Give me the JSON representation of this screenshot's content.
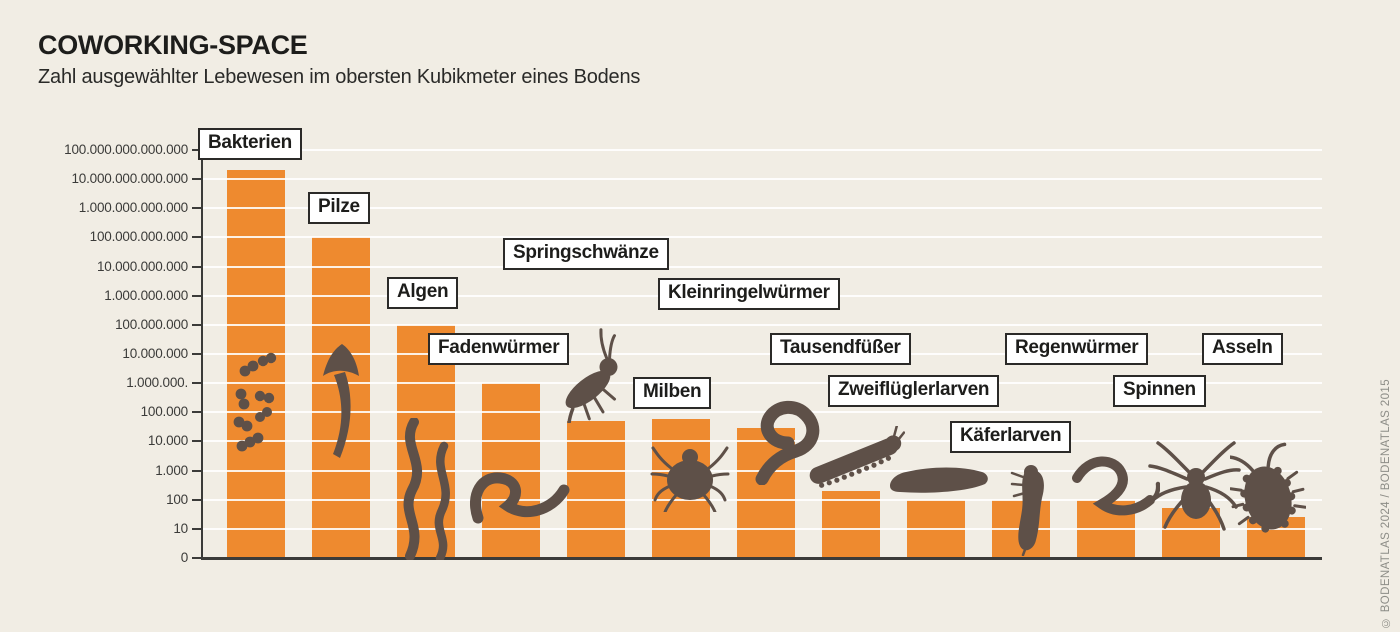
{
  "header": {
    "title": "COWORKING-SPACE",
    "subtitle": "Zahl ausgewählter Lebewesen im obersten Kubikmeter eines Bodens"
  },
  "credit": "© BODENATLAS 2024 / BODENATLAS 2015",
  "colors": {
    "background": "#f1ede4",
    "bar_orange": "#ee8a2f",
    "icon_brown": "#5e5048",
    "gridline_white": "#ffffff",
    "axis_dark": "#3b3b39",
    "label_box_bg": "#ffffff",
    "label_box_border": "#2b2a28",
    "text_dark": "#1d1d1b",
    "credit_gray": "#8d8d87"
  },
  "chart_data": {
    "type": "bar",
    "scale": "log10",
    "title": "COWORKING-SPACE",
    "subtitle": "Zahl ausgewählter Lebewesen im obersten Kubikmeter eines Bodens",
    "categories": [
      "Bakterien",
      "Pilze",
      "Algen",
      "Fadenwürmer",
      "Springschwänze",
      "Milben",
      "Kleinringelwürmer",
      "Tausendfüßer",
      "Zweiflüglerlarven",
      "Käferlarven",
      "Regenwürmer",
      "Spinnen",
      "Asseln"
    ],
    "values": [
      20000000000000,
      100000000000,
      100000000,
      1000000,
      50000,
      60000,
      30000,
      200,
      100,
      100,
      100,
      50,
      25
    ],
    "icons": [
      "bacteria-icon",
      "mushroom-icon",
      "algae-icon",
      "nematode-icon",
      "springtail-icon",
      "mite-icon",
      "potworm-icon",
      "millipede-icon",
      "fly-larva-icon",
      "beetle-larva-icon",
      "earthworm-icon",
      "spider-icon",
      "woodlouse-icon"
    ],
    "ytick_labels": [
      "0",
      "10",
      "100",
      "1.000",
      "10.000",
      "100.000",
      "1.000.000.",
      "10.000.000",
      "100.000.000",
      "1.000.000.000",
      "10.000.000.000",
      "100.000.000.000",
      "1.000.000.000.000",
      "10.000.000.000.000",
      "100.000.000.000.000"
    ],
    "ylim": [
      "0",
      "100.000.000.000.000"
    ],
    "xlabel": "",
    "ylabel": "",
    "grid": true,
    "legend": false,
    "bar_labels_style": "boxed callouts above bars"
  }
}
